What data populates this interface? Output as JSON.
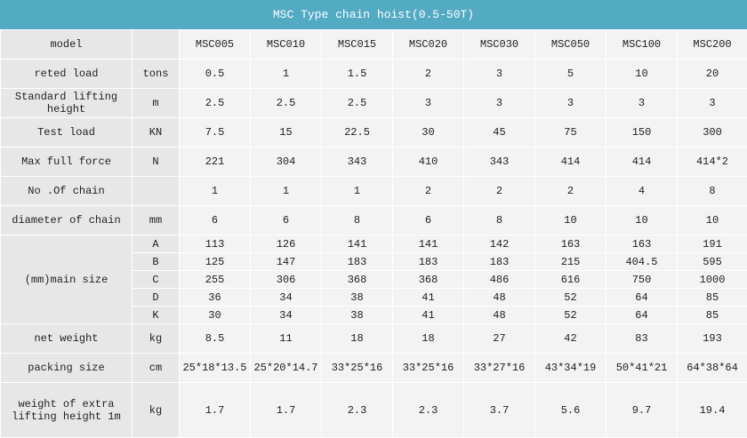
{
  "title": "MSC Type chain hoist(0.5-50T)",
  "header": {
    "label": "model",
    "models": [
      "MSC005",
      "MSC010",
      "MSC015",
      "MSC020",
      "MSC030",
      "MSC050",
      "MSC100",
      "MSC200"
    ]
  },
  "rows": [
    {
      "label": "reted load",
      "unit": "tons",
      "values": [
        "0.5",
        "1",
        "1.5",
        "2",
        "3",
        "5",
        "10",
        "20"
      ]
    },
    {
      "label": "Standard lifting height",
      "unit": "m",
      "values": [
        "2.5",
        "2.5",
        "2.5",
        "3",
        "3",
        "3",
        "3",
        "3"
      ]
    },
    {
      "label": "Test load",
      "unit": "KN",
      "values": [
        "7.5",
        "15",
        "22.5",
        "30",
        "45",
        "75",
        "150",
        "300"
      ]
    },
    {
      "label": "Max full force",
      "unit": "N",
      "values": [
        "221",
        "304",
        "343",
        "410",
        "343",
        "414",
        "414",
        "414*2"
      ]
    },
    {
      "label": "No .Of chain",
      "values": [
        "1",
        "1",
        "1",
        "2",
        "2",
        "2",
        "4",
        "8"
      ]
    },
    {
      "label": "diameter of chain",
      "unit": "mm",
      "values": [
        "6",
        "6",
        "8",
        "6",
        "8",
        "10",
        "10",
        "10"
      ]
    },
    {
      "label": "(mm)main size",
      "subrows": [
        {
          "unit": "A",
          "values": [
            "113",
            "126",
            "141",
            "141",
            "142",
            "163",
            "163",
            "191"
          ]
        },
        {
          "unit": "B",
          "values": [
            "125",
            "147",
            "183",
            "183",
            "183",
            "215",
            "404.5",
            "595"
          ]
        },
        {
          "unit": "C",
          "values": [
            "255",
            "306",
            "368",
            "368",
            "486",
            "616",
            "750",
            "1000"
          ]
        },
        {
          "unit": "D",
          "values": [
            "36",
            "34",
            "38",
            "41",
            "48",
            "52",
            "64",
            "85"
          ]
        },
        {
          "unit": "K",
          "values": [
            "30",
            "34",
            "38",
            "41",
            "48",
            "52",
            "64",
            "85"
          ]
        }
      ]
    },
    {
      "label": "net weight",
      "unit": "kg",
      "values": [
        "8.5",
        "11",
        "18",
        "18",
        "27",
        "42",
        "83",
        "193"
      ]
    },
    {
      "label": "packing size",
      "unit": "cm",
      "values": [
        "25*18*13.5",
        "25*20*14.7",
        "33*25*16",
        "33*25*16",
        "33*27*16",
        "43*34*19",
        "50*41*21",
        "64*38*64"
      ]
    },
    {
      "label": "weight of extra lifting height 1m",
      "unit": "kg",
      "values": [
        "1.7",
        "1.7",
        "2.3",
        "2.3",
        "3.7",
        "5.6",
        "9.7",
        "19.4"
      ]
    }
  ]
}
